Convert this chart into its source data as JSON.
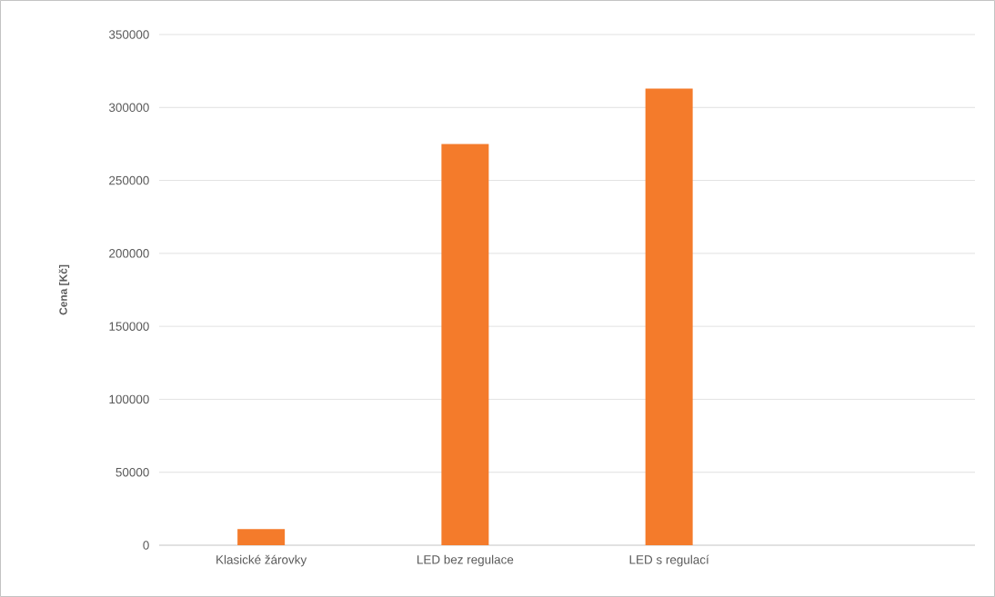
{
  "chart_data": {
    "type": "bar",
    "ylabel": "Cena [Kč]",
    "categories": [
      "Klasické žárovky",
      "LED bez regulace",
      "LED s regulací",
      null
    ],
    "values": [
      11000,
      275000,
      313000,
      null
    ],
    "color": "#f47b2b",
    "ylim": [
      0,
      350000
    ],
    "yticks": [
      0,
      50000,
      100000,
      150000,
      200000,
      250000,
      300000,
      350000
    ],
    "grid": "y"
  }
}
